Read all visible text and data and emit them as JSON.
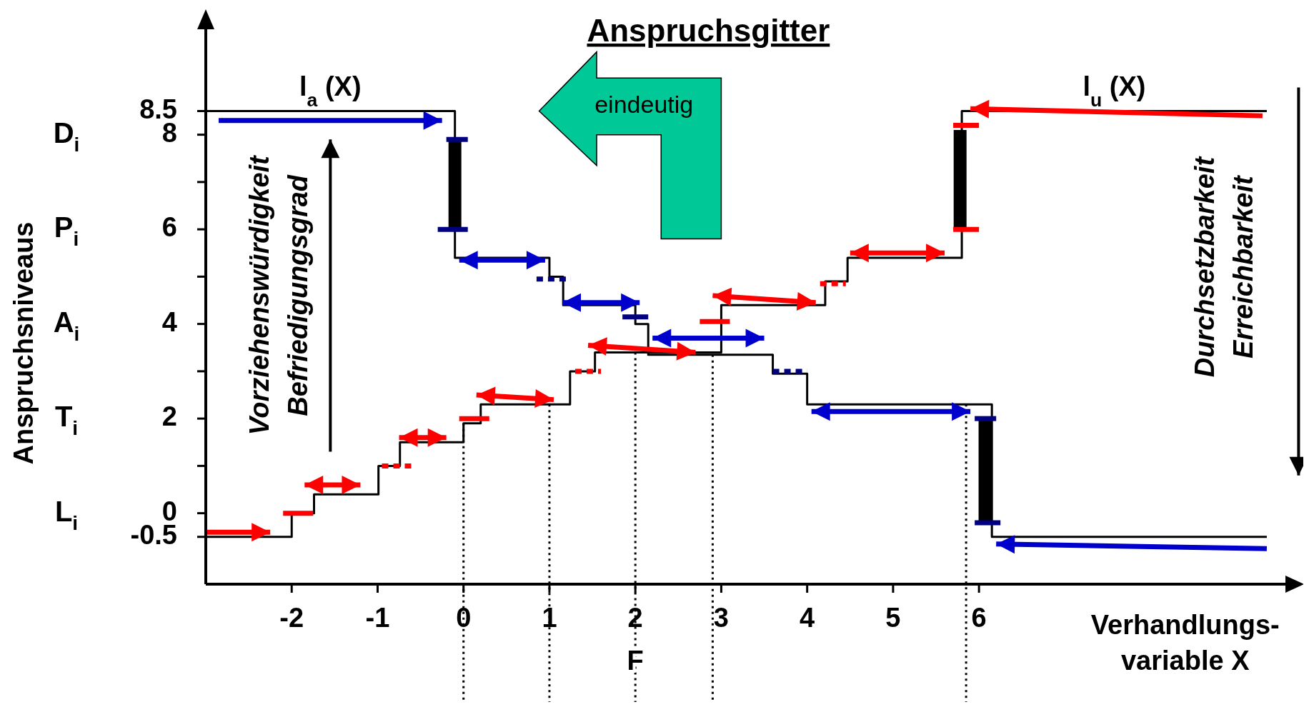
{
  "chart_data": {
    "type": "step",
    "title": "Anspruchsgitter",
    "xlabel": "Verhandlungs-\nvariable X",
    "ylabel": "Anspruchsniveaus",
    "xlim": [
      -3,
      9.6
    ],
    "xticks": [
      -2,
      -1,
      0,
      1,
      2,
      3,
      4,
      5,
      6
    ],
    "ylim": [
      -1.5,
      10.5
    ],
    "yticks": [
      -0.5,
      0,
      {
        "value": 1,
        "label": null
      },
      2,
      {
        "value": 3,
        "label": null
      },
      4,
      {
        "value": 5,
        "label": null
      },
      6,
      {
        "value": 7,
        "label": null
      },
      8,
      8.5
    ],
    "series": [
      {
        "name": "l$_{a}$ (X)",
        "color": "#000000",
        "x": [
          -3,
          -0.1,
          1.0,
          1.16,
          2.0,
          2.15,
          3.6,
          4.0,
          6.15,
          9.35
        ],
        "values": [
          8.5,
          5.4,
          5.0,
          4.4,
          4.0,
          3.35,
          2.95,
          2.3,
          -0.5,
          -0.5
        ]
      },
      {
        "name": "l$_{u}$ (X)",
        "color": "#000000",
        "x": [
          -3,
          -2.0,
          -1.74,
          -0.99,
          -0.74,
          0.0,
          0.2,
          1.24,
          1.53,
          3.0,
          4.21,
          4.47,
          5.8,
          9.35
        ],
        "values": [
          -0.5,
          0,
          0.4,
          1.0,
          1.5,
          1.9,
          2.3,
          3.0,
          3.4,
          4.4,
          4.9,
          5.4,
          8.5,
          8.5
        ]
      }
    ],
    "ref_lines": [
      {
        "axis": "x",
        "value": 0,
        "line_style": "dotted"
      },
      {
        "axis": "x",
        "value": 1,
        "line_style": "dotted"
      },
      {
        "axis": "x",
        "value": 2,
        "label": "F",
        "line_style": "dotted"
      },
      {
        "axis": "x",
        "value": 2.9,
        "line_style": "dotted"
      },
      {
        "axis": "x",
        "value": 5.85,
        "line_style": "dotted"
      }
    ],
    "annotations": [
      "eindeutig",
      "Vorziehenswürdigkeit",
      "Befriedigungsgrad",
      "Durchsetzbarkeit",
      "Erreichbarkeit",
      "L$_{i}$",
      "T$_{i}$",
      "A$_{i}$",
      "P$_{i}$",
      "D$_{i}$"
    ]
  }
}
